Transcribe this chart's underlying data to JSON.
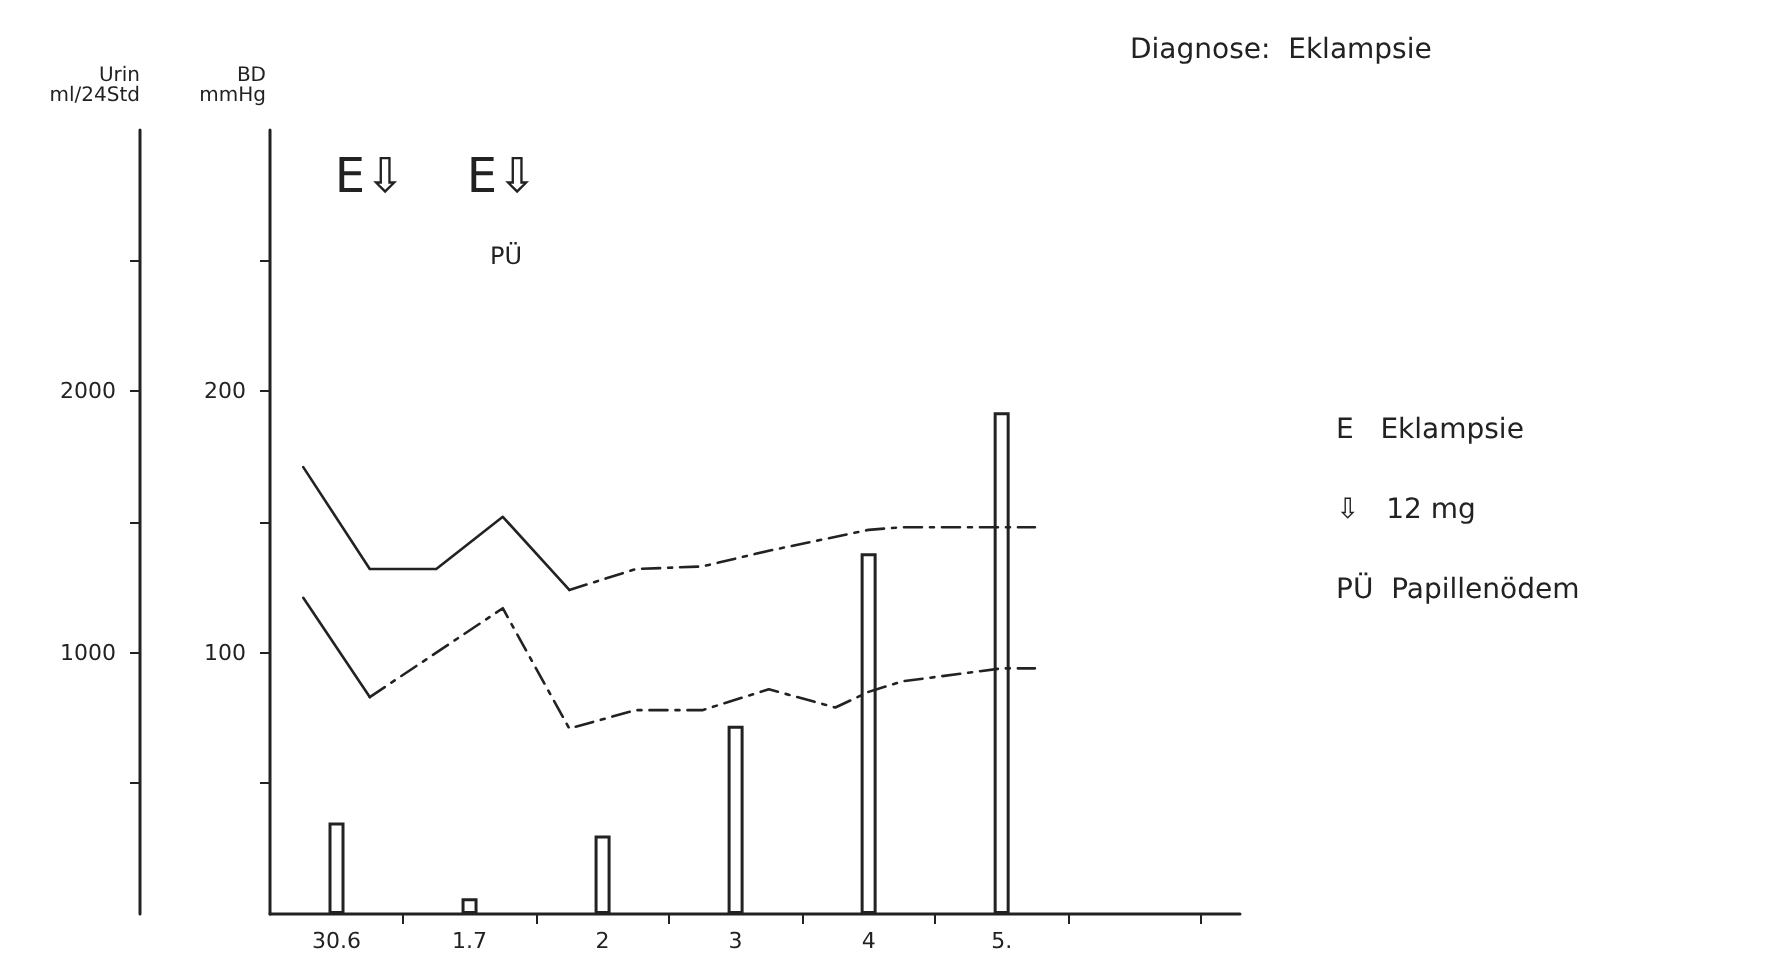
{
  "chart_data": {
    "type": "line",
    "title": "Diagnose:  Eklampsie",
    "ylabel": "Urin ml/24Std",
    "y2label": "BD mmHg",
    "xlim": [
      "--06-29T12:00",
      "--07-06T19:00"
    ],
    "xticks": [
      {
        "value": "--06-30",
        "label": "30.6"
      },
      {
        "value": "--06-30T12:00",
        "label": null
      },
      {
        "value": "--07-01",
        "label": "1.7"
      },
      {
        "value": "--07-01T12:00",
        "label": null
      },
      {
        "value": "--07-02",
        "label": "2"
      },
      {
        "value": "--07-02T12:00",
        "label": null
      },
      {
        "value": "--07-03",
        "label": "3"
      },
      {
        "value": "--07-03T12:00",
        "label": null
      },
      {
        "value": "--07-04",
        "label": "4"
      },
      {
        "value": "--07-04T12:00",
        "label": null
      },
      {
        "value": "--07-05",
        "label": "5."
      },
      {
        "value": "--07-05T12:00",
        "label": null
      },
      {
        "value": "--07-06T12:00",
        "label": null
      }
    ],
    "ylim": [
      0,
      3000
    ],
    "yticks": [
      {
        "value": 500,
        "label": null
      },
      1000,
      {
        "value": 1500,
        "label": null
      },
      2000,
      {
        "value": 2500,
        "label": null
      }
    ],
    "y2lim": [
      0,
      300
    ],
    "y2ticks": [
      {
        "value": 50,
        "label": null
      },
      100,
      {
        "value": 150,
        "label": null
      },
      200,
      {
        "value": 250,
        "label": null
      }
    ],
    "marker": "none",
    "series": [
      {
        "type": "bar",
        "color": "#ffffff",
        "x": [
          "--06-30",
          "--07-01",
          "--07-02",
          "--07-03",
          "--07-04",
          "--07-05"
        ],
        "values": [
          350,
          60,
          300,
          720,
          1380,
          1920
        ]
      },
      {
        "axis": "y2",
        "line_style": "solid",
        "color": "#222222",
        "x": [
          "--06-29T18:00",
          "--06-30T06:00",
          "--06-30T18:00",
          "--07-01T06:00",
          "--07-01T18:00"
        ],
        "values": [
          171,
          132,
          132,
          152,
          124
        ]
      },
      {
        "axis": "y2",
        "line_style": "dashed",
        "color": "#222222",
        "x": [
          "--07-01T18:00",
          "--07-02T06:00",
          "--07-02T18:00",
          "--07-03T06:00",
          "--07-04",
          "--07-04T06:00",
          "--07-05T06:00"
        ],
        "values": [
          124,
          132,
          133,
          139,
          147,
          148,
          148
        ]
      },
      {
        "axis": "y2",
        "line_style": "solid",
        "color": "#222222",
        "x": [
          "--06-29T18:00",
          "--06-30T06:00"
        ],
        "values": [
          121,
          83
        ]
      },
      {
        "axis": "y2",
        "line_style": "dashed",
        "color": "#222222",
        "x": [
          "--06-30T06:00",
          "--07-01T06:00",
          "--07-01T18:00",
          "--07-02T06:00",
          "--07-02T18:00",
          "--07-03T06:00",
          "--07-03T18:00",
          "--07-04",
          "--07-04T06:00",
          "--07-05",
          "--07-05T06:00"
        ],
        "values": [
          83,
          117,
          71,
          78,
          78,
          86,
          79,
          85,
          89,
          94,
          94
        ]
      }
    ],
    "annotations": [
      "E⇩",
      "E⇩",
      "PÜ",
      "E   Eklampsie",
      "⇩   12 mg",
      "PÜ  Papillenödem"
    ]
  }
}
